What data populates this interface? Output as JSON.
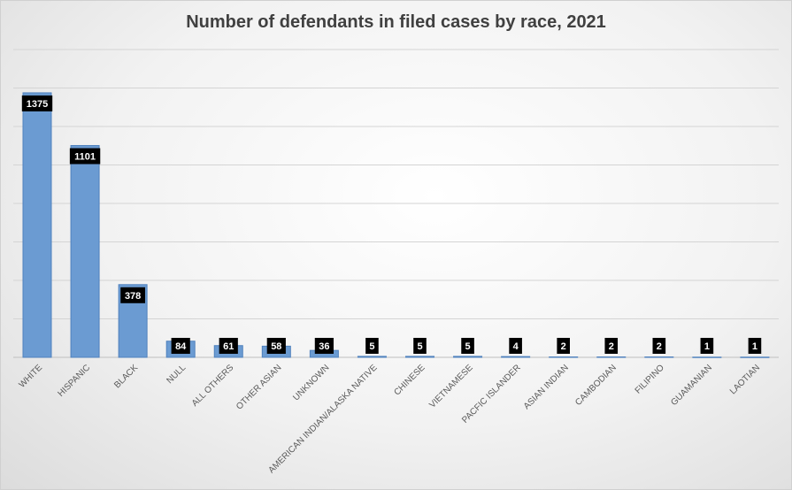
{
  "chart_data": {
    "type": "bar",
    "title": "Number of defendants in filed cases by race, 2021",
    "xlabel": "",
    "ylabel": "",
    "ylim": [
      0,
      1600
    ],
    "grid": true,
    "legend": "none",
    "bar_color": "#6b9bd2",
    "label_box_color": "#000000",
    "categories": [
      "WHITE",
      "HISPANIC",
      "BLACK",
      "NULL",
      "ALL OTHERS",
      "OTHER ASIAN",
      "UNKNOWN",
      "AMERICAN INDIAN/ALASKA NATIVE",
      "CHINESE",
      "VIETNAMESE",
      "PACFIC ISLANDER",
      "ASIAN INDIAN",
      "CAMBODIAN",
      "FILIPINO",
      "GUAMANIAN",
      "LAOTIAN"
    ],
    "values": [
      1375,
      1101,
      378,
      84,
      61,
      58,
      36,
      5,
      5,
      5,
      4,
      2,
      2,
      2,
      1,
      1
    ]
  }
}
